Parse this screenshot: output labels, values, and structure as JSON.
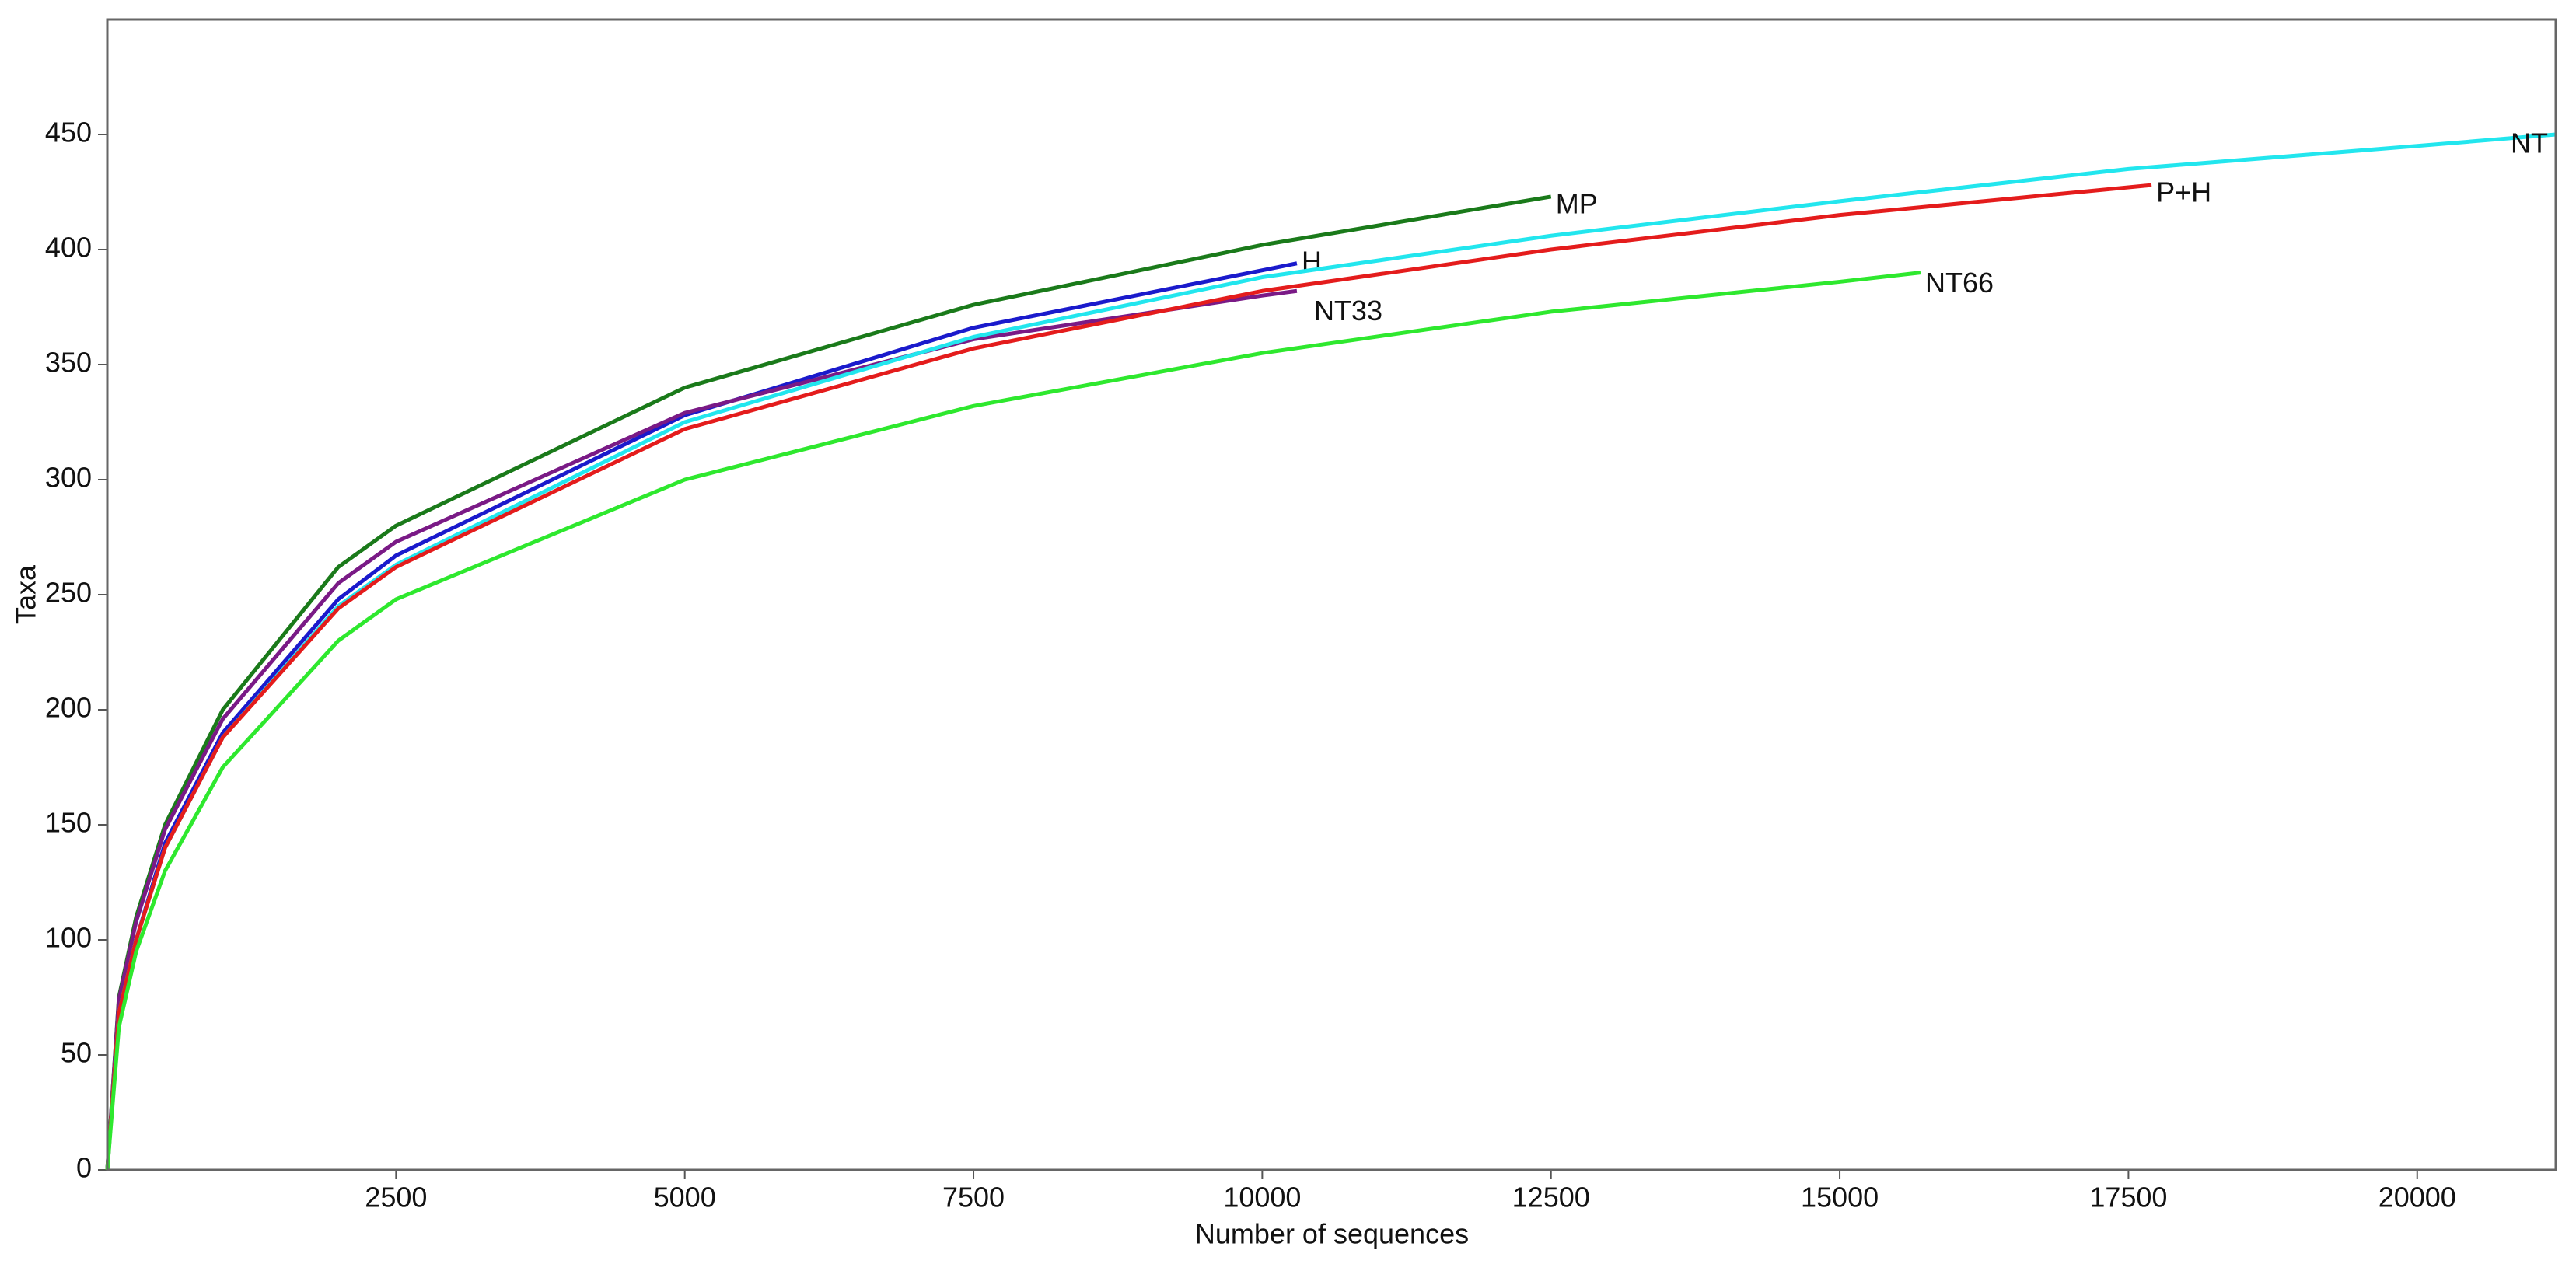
{
  "chart_data": {
    "type": "line",
    "x_label": "Number of sequences",
    "y_label": "Taxa",
    "xlim": [
      0,
      21200
    ],
    "ylim": [
      0,
      500
    ],
    "xticks": [
      2500,
      5000,
      7500,
      10000,
      12500,
      15000,
      17500,
      20000
    ],
    "yticks": [
      0,
      50,
      100,
      150,
      200,
      250,
      300,
      350,
      400,
      450
    ],
    "label_color": "#2323c8",
    "series": [
      {
        "name": "MP",
        "color": "#1a7a1a",
        "x": [
          0,
          100,
          250,
          500,
          1000,
          2000,
          2500,
          5000,
          7500,
          10000,
          12500
        ],
        "values": [
          0,
          75,
          110,
          150,
          200,
          262,
          280,
          340,
          376,
          402,
          423
        ]
      },
      {
        "name": "H",
        "color": "#1a1acc",
        "x": [
          0,
          100,
          250,
          500,
          1000,
          2000,
          2500,
          5000,
          7500,
          10000,
          10300
        ],
        "values": [
          0,
          68,
          100,
          142,
          190,
          248,
          267,
          328,
          366,
          391,
          394
        ]
      },
      {
        "name": "NT33",
        "color": "#7a1a86",
        "x": [
          0,
          100,
          250,
          500,
          1000,
          2000,
          2500,
          5000,
          7500,
          10000,
          10300
        ],
        "values": [
          0,
          74,
          108,
          148,
          196,
          255,
          273,
          329,
          361,
          380,
          382
        ]
      },
      {
        "name": "NT",
        "color": "#22e6ee",
        "x": [
          0,
          100,
          250,
          500,
          1000,
          2000,
          2500,
          5000,
          7500,
          10000,
          12500,
          15000,
          17500,
          20000,
          21200
        ],
        "values": [
          0,
          68,
          100,
          140,
          188,
          245,
          263,
          325,
          362,
          388,
          406,
          421,
          435,
          445,
          450
        ]
      },
      {
        "name": "P+H",
        "color": "#e41c1c",
        "x": [
          0,
          100,
          250,
          500,
          1000,
          2000,
          2500,
          5000,
          7500,
          10000,
          12500,
          15000,
          17700
        ],
        "values": [
          0,
          68,
          100,
          140,
          188,
          244,
          262,
          322,
          357,
          382,
          400,
          415,
          428
        ]
      },
      {
        "name": "NT66",
        "color": "#2ee82e",
        "x": [
          0,
          100,
          250,
          500,
          1000,
          2000,
          2500,
          5000,
          7500,
          10000,
          12500,
          15000,
          15700
        ],
        "values": [
          0,
          62,
          95,
          130,
          175,
          230,
          248,
          300,
          332,
          355,
          373,
          386,
          390
        ]
      }
    ]
  }
}
